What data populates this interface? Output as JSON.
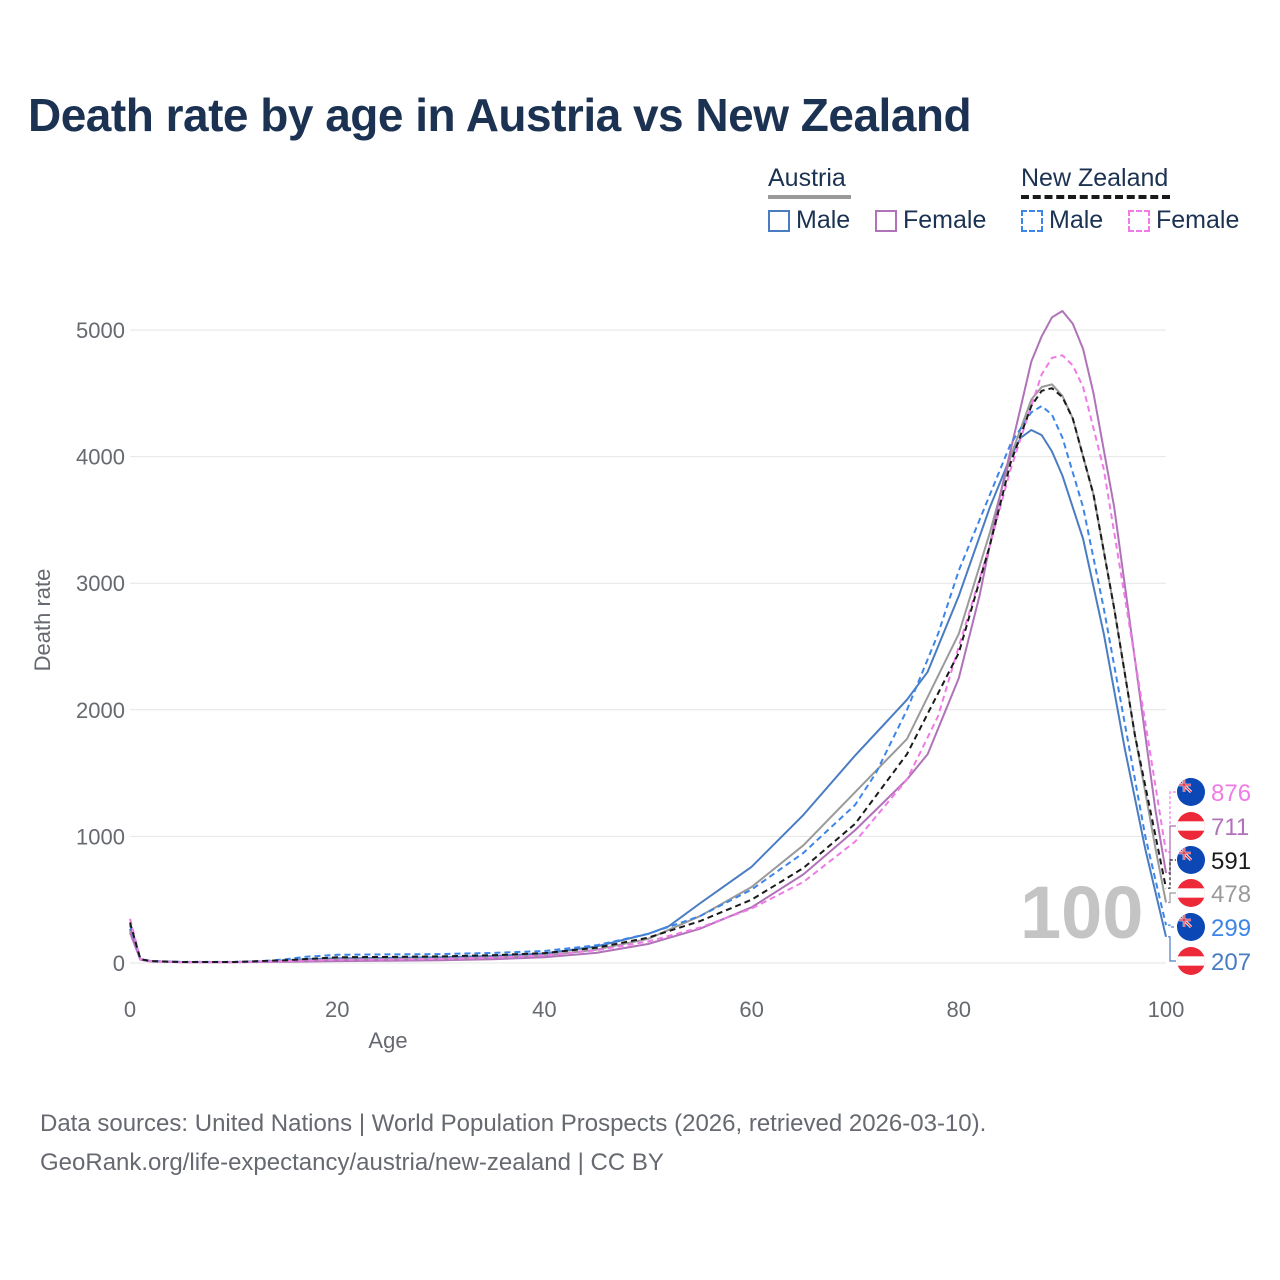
{
  "title": "Death rate by age in Austria vs New Zealand",
  "legend": {
    "austria": {
      "label": "Austria",
      "male": "Male",
      "female": "Female"
    },
    "new_zealand": {
      "label": "New Zealand",
      "male": "Male",
      "female": "Female"
    }
  },
  "colors": {
    "austria_male": "#4a7cc2",
    "austria_female": "#b072b8",
    "austria_total": "#9a9a9a",
    "nz_male": "#3d86e8",
    "nz_female": "#f07ae6",
    "nz_total": "#1a1a1a",
    "title": "#1c3252"
  },
  "watermark": "100",
  "footer": {
    "line1": "Data sources: United Nations | World Population Prospects (2026, retrieved 2026-03-10).",
    "line2": "GeoRank.org/life-expectancy/austria/new-zealand | CC BY"
  },
  "chart_data": {
    "type": "line",
    "xlabel": "Age",
    "ylabel": "Death rate",
    "xlim": [
      0,
      100
    ],
    "ylim": [
      0,
      5000
    ],
    "x_ticks": [
      0,
      20,
      40,
      60,
      80,
      100
    ],
    "y_ticks": [
      0,
      1000,
      2000,
      3000,
      4000,
      5000
    ],
    "grid": true,
    "series": [
      {
        "name": "Austria Male",
        "country": "Austria",
        "sex": "Male",
        "style": "solid",
        "color_key": "austria_male",
        "end_value": 207,
        "points": [
          [
            0,
            270
          ],
          [
            1,
            30
          ],
          [
            2,
            15
          ],
          [
            5,
            8
          ],
          [
            10,
            8
          ],
          [
            13,
            12
          ],
          [
            15,
            20
          ],
          [
            17,
            30
          ],
          [
            20,
            38
          ],
          [
            25,
            40
          ],
          [
            30,
            45
          ],
          [
            35,
            55
          ],
          [
            40,
            75
          ],
          [
            45,
            130
          ],
          [
            50,
            230
          ],
          [
            52,
            290
          ],
          [
            55,
            470
          ],
          [
            60,
            760
          ],
          [
            65,
            1170
          ],
          [
            70,
            1640
          ],
          [
            75,
            2080
          ],
          [
            77,
            2300
          ],
          [
            80,
            2900
          ],
          [
            83,
            3600
          ],
          [
            85,
            4000
          ],
          [
            86,
            4150
          ],
          [
            87,
            4210
          ],
          [
            88,
            4170
          ],
          [
            89,
            4040
          ],
          [
            90,
            3850
          ],
          [
            92,
            3350
          ],
          [
            94,
            2600
          ],
          [
            96,
            1700
          ],
          [
            98,
            900
          ],
          [
            100,
            207
          ]
        ]
      },
      {
        "name": "Austria Female",
        "country": "Austria",
        "sex": "Female",
        "style": "solid",
        "color_key": "austria_female",
        "end_value": 711,
        "points": [
          [
            0,
            240
          ],
          [
            1,
            25
          ],
          [
            2,
            12
          ],
          [
            5,
            6
          ],
          [
            10,
            6
          ],
          [
            15,
            10
          ],
          [
            20,
            15
          ],
          [
            25,
            18
          ],
          [
            30,
            22
          ],
          [
            35,
            30
          ],
          [
            40,
            45
          ],
          [
            45,
            80
          ],
          [
            50,
            150
          ],
          [
            55,
            270
          ],
          [
            60,
            440
          ],
          [
            65,
            700
          ],
          [
            70,
            1050
          ],
          [
            75,
            1450
          ],
          [
            77,
            1650
          ],
          [
            80,
            2250
          ],
          [
            82,
            2900
          ],
          [
            84,
            3700
          ],
          [
            86,
            4400
          ],
          [
            87,
            4750
          ],
          [
            88,
            4950
          ],
          [
            89,
            5100
          ],
          [
            90,
            5150
          ],
          [
            91,
            5050
          ],
          [
            92,
            4850
          ],
          [
            93,
            4500
          ],
          [
            95,
            3600
          ],
          [
            97,
            2400
          ],
          [
            99,
            1200
          ],
          [
            100,
            711
          ]
        ]
      },
      {
        "name": "Austria Total",
        "country": "Austria",
        "sex": "Total",
        "style": "solid",
        "color_key": "austria_total",
        "end_value": 478,
        "points": [
          [
            0,
            255
          ],
          [
            1,
            28
          ],
          [
            2,
            14
          ],
          [
            5,
            7
          ],
          [
            10,
            7
          ],
          [
            15,
            15
          ],
          [
            20,
            27
          ],
          [
            25,
            30
          ],
          [
            30,
            34
          ],
          [
            35,
            43
          ],
          [
            40,
            60
          ],
          [
            45,
            105
          ],
          [
            50,
            190
          ],
          [
            55,
            370
          ],
          [
            60,
            600
          ],
          [
            65,
            930
          ],
          [
            70,
            1350
          ],
          [
            75,
            1770
          ],
          [
            80,
            2600
          ],
          [
            83,
            3400
          ],
          [
            85,
            4000
          ],
          [
            87,
            4450
          ],
          [
            88,
            4550
          ],
          [
            89,
            4570
          ],
          [
            90,
            4480
          ],
          [
            91,
            4300
          ],
          [
            93,
            3700
          ],
          [
            95,
            2800
          ],
          [
            97,
            1800
          ],
          [
            99,
            900
          ],
          [
            100,
            478
          ]
        ]
      },
      {
        "name": "New Zealand Male",
        "country": "New Zealand",
        "sex": "Male",
        "style": "dashed",
        "color_key": "nz_male",
        "end_value": 299,
        "points": [
          [
            0,
            300
          ],
          [
            1,
            32
          ],
          [
            2,
            16
          ],
          [
            5,
            9
          ],
          [
            10,
            9
          ],
          [
            13,
            15
          ],
          [
            15,
            30
          ],
          [
            17,
            50
          ],
          [
            20,
            65
          ],
          [
            25,
            68
          ],
          [
            30,
            70
          ],
          [
            35,
            80
          ],
          [
            40,
            95
          ],
          [
            45,
            140
          ],
          [
            50,
            230
          ],
          [
            55,
            370
          ],
          [
            60,
            580
          ],
          [
            65,
            870
          ],
          [
            70,
            1250
          ],
          [
            72,
            1500
          ],
          [
            75,
            2000
          ],
          [
            78,
            2600
          ],
          [
            80,
            3100
          ],
          [
            83,
            3700
          ],
          [
            85,
            4100
          ],
          [
            87,
            4350
          ],
          [
            88,
            4400
          ],
          [
            89,
            4330
          ],
          [
            90,
            4150
          ],
          [
            92,
            3600
          ],
          [
            94,
            2800
          ],
          [
            96,
            1900
          ],
          [
            98,
            1000
          ],
          [
            100,
            299
          ]
        ]
      },
      {
        "name": "New Zealand Female",
        "country": "New Zealand",
        "sex": "Female",
        "style": "dashed",
        "color_key": "nz_female",
        "end_value": 876,
        "points": [
          [
            0,
            350
          ],
          [
            1,
            30
          ],
          [
            2,
            14
          ],
          [
            5,
            7
          ],
          [
            10,
            7
          ],
          [
            15,
            15
          ],
          [
            20,
            25
          ],
          [
            25,
            28
          ],
          [
            30,
            32
          ],
          [
            35,
            42
          ],
          [
            40,
            60
          ],
          [
            45,
            100
          ],
          [
            50,
            170
          ],
          [
            55,
            280
          ],
          [
            60,
            430
          ],
          [
            65,
            640
          ],
          [
            70,
            960
          ],
          [
            75,
            1450
          ],
          [
            78,
            1950
          ],
          [
            80,
            2500
          ],
          [
            83,
            3300
          ],
          [
            85,
            3900
          ],
          [
            87,
            4400
          ],
          [
            88,
            4650
          ],
          [
            89,
            4780
          ],
          [
            90,
            4800
          ],
          [
            91,
            4720
          ],
          [
            92,
            4550
          ],
          [
            94,
            3900
          ],
          [
            96,
            2900
          ],
          [
            98,
            1900
          ],
          [
            100,
            876
          ]
        ]
      },
      {
        "name": "New Zealand Total",
        "country": "New Zealand",
        "sex": "Total",
        "style": "dashed",
        "color_key": "nz_total",
        "end_value": 591,
        "points": [
          [
            0,
            320
          ],
          [
            1,
            31
          ],
          [
            2,
            15
          ],
          [
            5,
            8
          ],
          [
            10,
            8
          ],
          [
            15,
            22
          ],
          [
            20,
            45
          ],
          [
            25,
            48
          ],
          [
            30,
            52
          ],
          [
            35,
            62
          ],
          [
            40,
            78
          ],
          [
            45,
            120
          ],
          [
            50,
            200
          ],
          [
            55,
            330
          ],
          [
            60,
            500
          ],
          [
            65,
            750
          ],
          [
            70,
            1100
          ],
          [
            75,
            1650
          ],
          [
            80,
            2450
          ],
          [
            83,
            3300
          ],
          [
            85,
            3950
          ],
          [
            87,
            4400
          ],
          [
            88,
            4520
          ],
          [
            89,
            4540
          ],
          [
            90,
            4470
          ],
          [
            91,
            4300
          ],
          [
            93,
            3700
          ],
          [
            95,
            2800
          ],
          [
            97,
            1800
          ],
          [
            99,
            1000
          ],
          [
            100,
            591
          ]
        ]
      }
    ],
    "end_labels": [
      {
        "value": "876",
        "country": "New Zealand",
        "flag": "new-zealand-flag-icon",
        "color_key": "nz_female"
      },
      {
        "value": "711",
        "country": "Austria",
        "flag": "austria-flag-icon",
        "color_key": "austria_female"
      },
      {
        "value": "591",
        "country": "New Zealand",
        "flag": "new-zealand-flag-icon",
        "color_key": "nz_total"
      },
      {
        "value": "478",
        "country": "Austria",
        "flag": "austria-flag-icon",
        "color_key": "austria_total"
      },
      {
        "value": "299",
        "country": "New Zealand",
        "flag": "new-zealand-flag-icon",
        "color_key": "nz_male"
      },
      {
        "value": "207",
        "country": "Austria",
        "flag": "austria-flag-icon",
        "color_key": "austria_male"
      }
    ]
  }
}
